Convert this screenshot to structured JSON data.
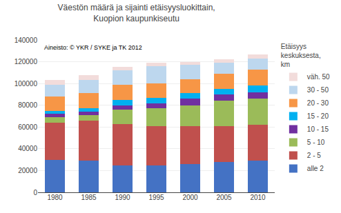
{
  "chart_data": {
    "type": "bar",
    "stacked": true,
    "title": "Väestön määrä ja sijainti etäisyysluokittain,\nKuopion kaupunkiseutu",
    "legend_title": "Etäisyys\nkeskuksesta,\nkm",
    "annotations": [
      "Aineisto: © YKR / SYKE ja TK 2012"
    ],
    "categories": [
      "1980",
      "1985",
      "1990",
      "1995",
      "2000",
      "2005",
      "2010"
    ],
    "series": [
      {
        "name": "alle 2",
        "color": "#4472C4",
        "values": [
          30000,
          29000,
          25000,
          25000,
          26000,
          28000,
          29000
        ]
      },
      {
        "name": "2 - 5",
        "color": "#C0504D",
        "values": [
          34000,
          37000,
          38000,
          36000,
          35000,
          33000,
          33000
        ]
      },
      {
        "name": "5 - 10",
        "color": "#9BBB59",
        "values": [
          5000,
          5000,
          13000,
          16000,
          19000,
          23000,
          24000
        ]
      },
      {
        "name": "10 - 15",
        "color": "#7030A0",
        "values": [
          3000,
          3000,
          4000,
          5000,
          6000,
          6000,
          6000
        ]
      },
      {
        "name": "15 - 20",
        "color": "#00B0F0",
        "values": [
          3000,
          3000,
          5000,
          5000,
          5000,
          5000,
          6000
        ]
      },
      {
        "name": "20 - 30",
        "color": "#F79646",
        "values": [
          13000,
          14000,
          14000,
          13000,
          13000,
          14000,
          15000
        ]
      },
      {
        "name": "30 - 50",
        "color": "#BDD7EE",
        "values": [
          11000,
          12000,
          13000,
          16000,
          13000,
          10000,
          10000
        ]
      },
      {
        "name": "väh. 50",
        "color": "#F2DCDB",
        "values": [
          4000,
          5000,
          3000,
          3000,
          3000,
          3000,
          3500
        ]
      }
    ],
    "ylim": [
      0,
      140000
    ],
    "yticks": [
      0,
      20000,
      40000,
      60000,
      80000,
      100000,
      120000,
      140000
    ],
    "grid": true,
    "legend": "right"
  }
}
